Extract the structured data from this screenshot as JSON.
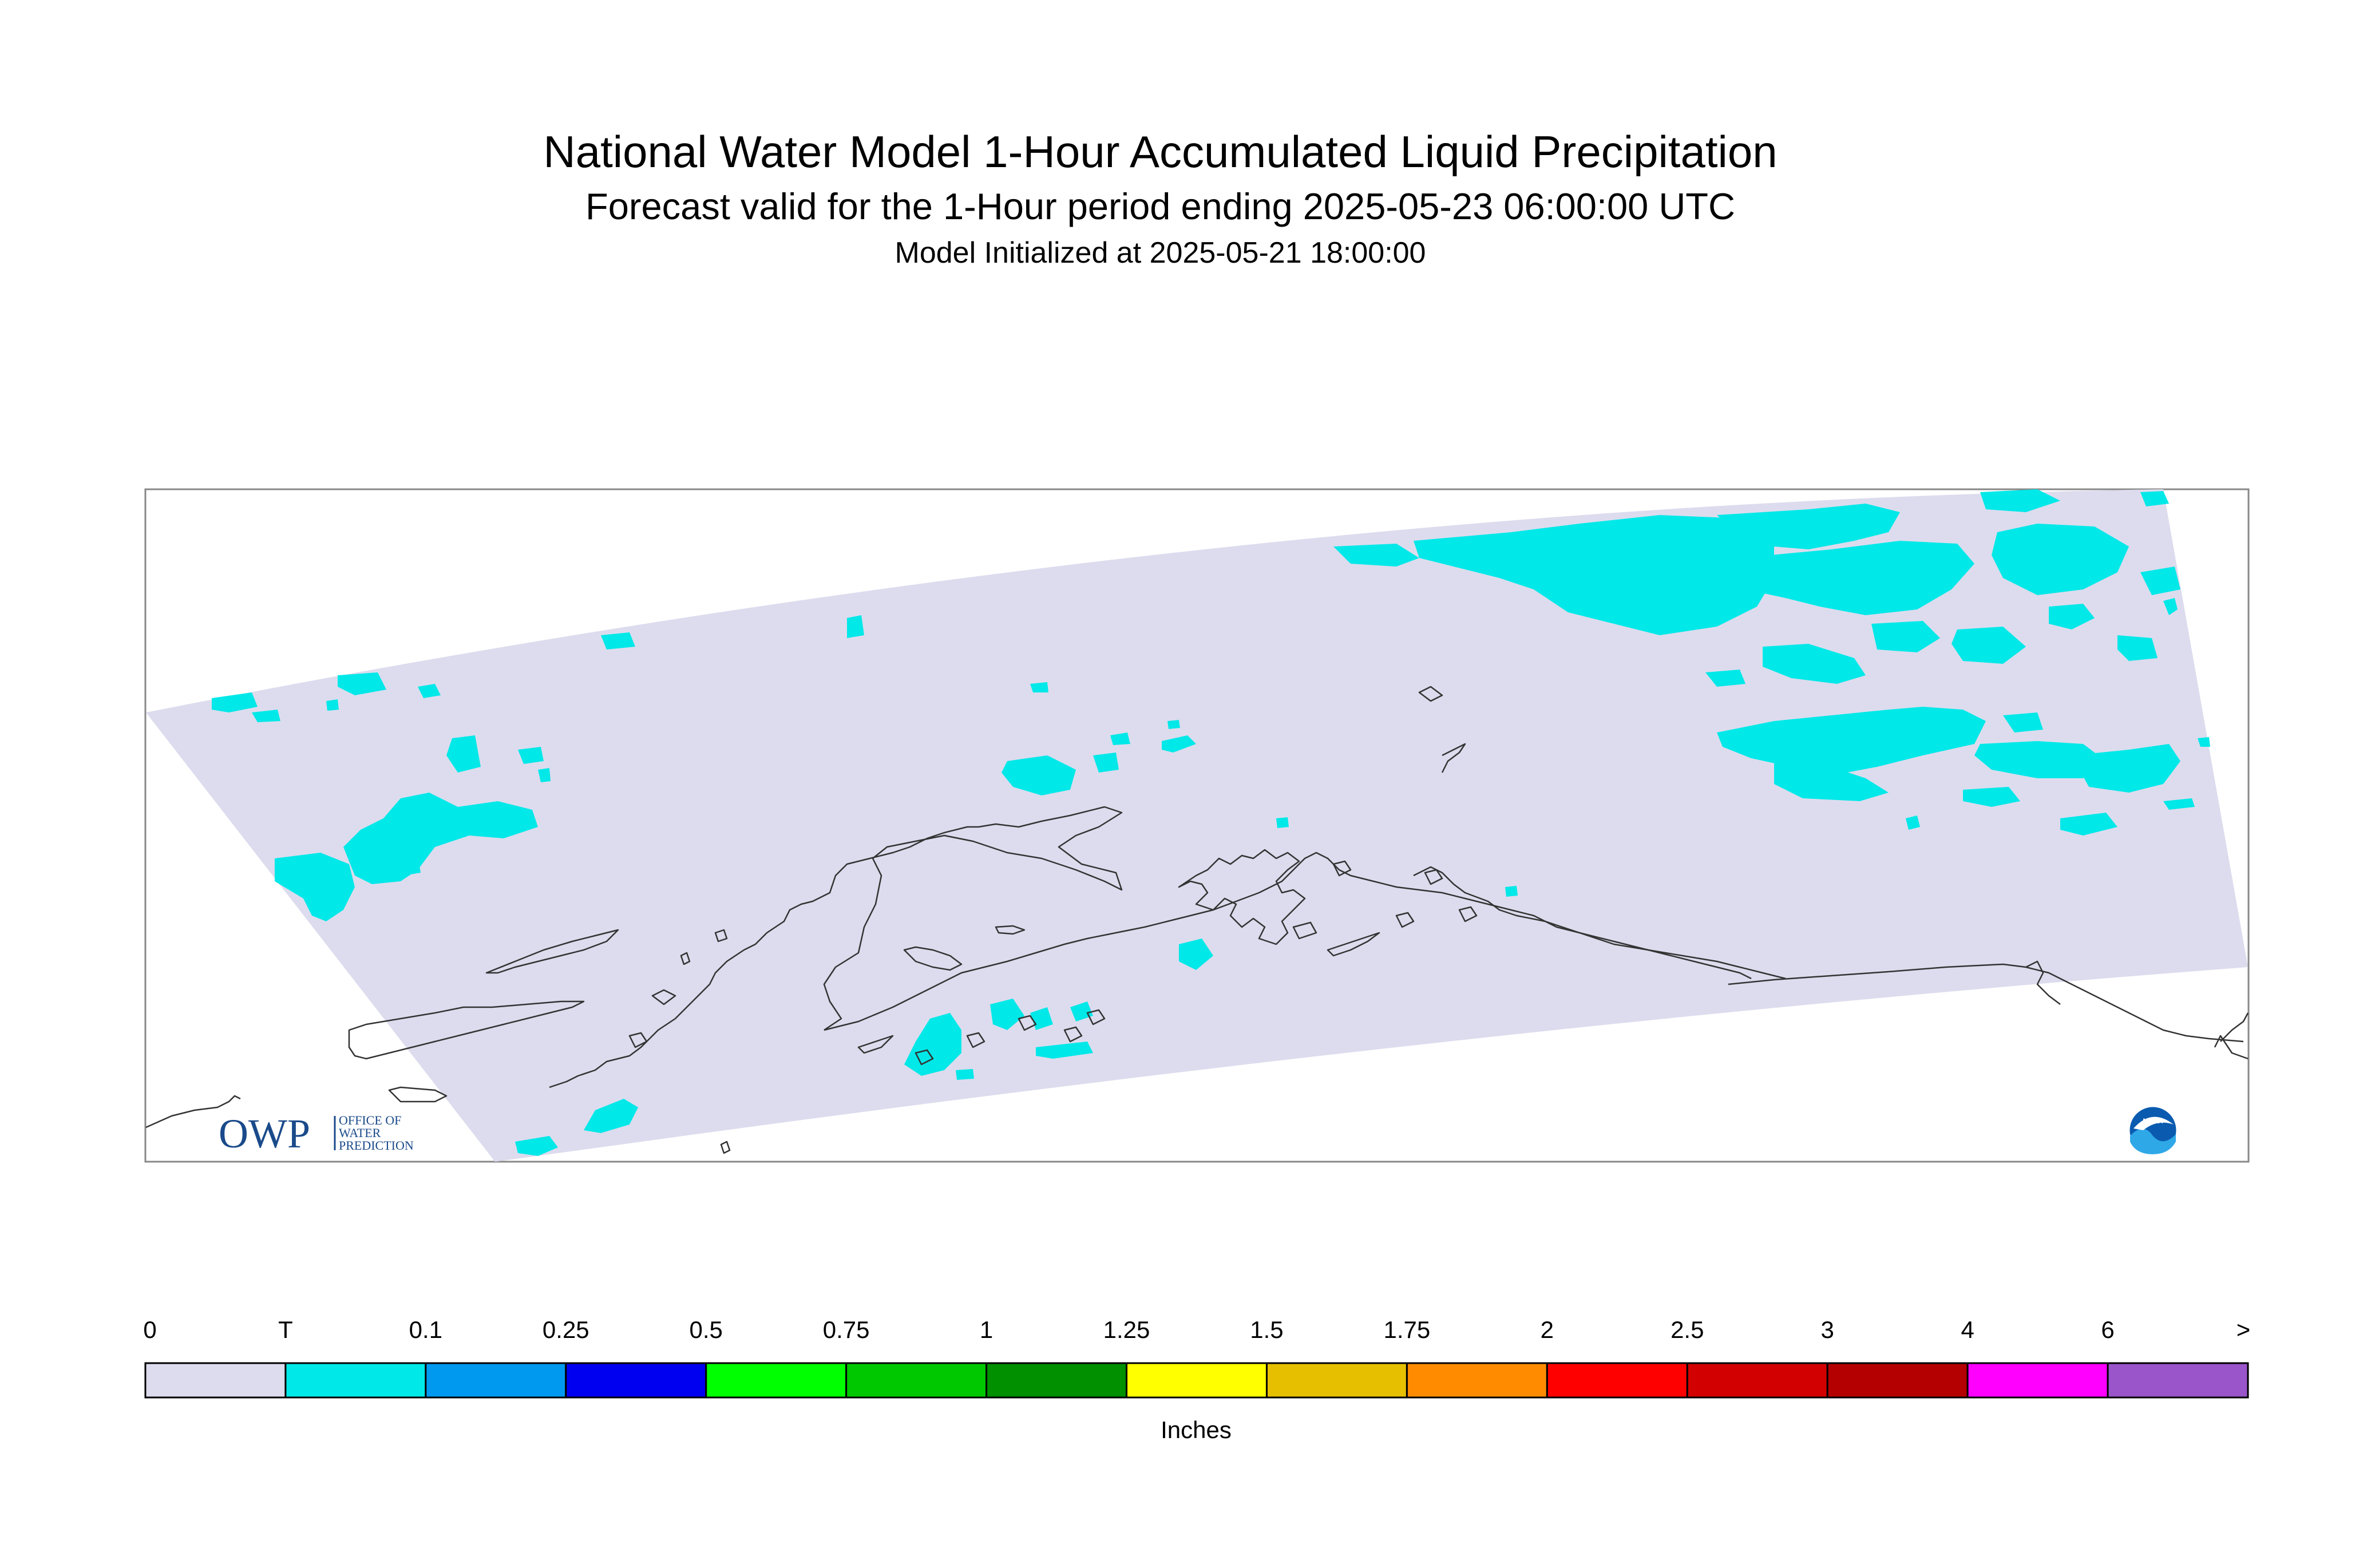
{
  "title": "National Water Model 1-Hour Accumulated Liquid Precipitation",
  "subtitle": "Forecast valid for the 1-Hour period ending 2025-05-23 06:00:00 UTC",
  "init_line": "Model Initialized at 2025-05-21 18:00:00",
  "units": "Inches",
  "domain_color": "#dcdcee",
  "precip_color": "#00e8e8",
  "coast_color": "#333333",
  "logos": {
    "owp_main": "OWP",
    "owp_line1": "OFFICE OF",
    "owp_line2": "WATER",
    "owp_line3": "PREDICTION",
    "noaa_label": "NOAA"
  },
  "legend": {
    "ticks": [
      "0",
      "T",
      "0.1",
      "0.25",
      "0.5",
      "0.75",
      "1",
      "1.25",
      "1.5",
      "1.75",
      "2",
      "2.5",
      "3",
      "4",
      "6",
      ">"
    ],
    "colors": [
      "#dcdcee",
      "#00e8e8",
      "#0099f0",
      "#0000f0",
      "#00ff00",
      "#00c800",
      "#009000",
      "#ffff00",
      "#e6c000",
      "#ff8c00",
      "#ff0000",
      "#d20000",
      "#b40000",
      "#ff00ff",
      "#9955c9"
    ]
  }
}
